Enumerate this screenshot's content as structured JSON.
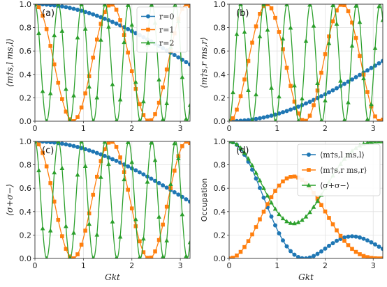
{
  "colors": {
    "blue": "#1f77b4",
    "orange": "#ff7f0e",
    "green": "#2ca02c",
    "grid": "#e2e2e2"
  },
  "chart_data": [
    {
      "type": "line",
      "panel_label": "(a)",
      "ylabel": "⟨m†s,l ms,l⟩",
      "xlabel": "",
      "xlim": [
        0,
        3.2
      ],
      "ylim": [
        0,
        1.0
      ],
      "xticks": [
        "0",
        "1",
        "2",
        "3"
      ],
      "yticks": [
        "0.0",
        "0.2",
        "0.4",
        "0.6",
        "0.8",
        "1.0"
      ],
      "grid": true,
      "legend": "top-right",
      "series": [
        {
          "name": "r=0",
          "color": "blue",
          "marker": "circle",
          "form": "cos2",
          "freq": 0.25
        },
        {
          "name": "r=1",
          "color": "orange",
          "marker": "square",
          "form": "cos2",
          "freq": 2.0
        },
        {
          "name": "r=2",
          "color": "green",
          "marker": "triangle",
          "form": "cos2",
          "freq": 6.5
        }
      ]
    },
    {
      "type": "line",
      "panel_label": "(b)",
      "ylabel": "⟨m†s,r ms,r⟩",
      "xlabel": "",
      "xlim": [
        0,
        3.2
      ],
      "ylim": [
        0,
        1.0
      ],
      "xticks": [
        "0",
        "1",
        "2",
        "3"
      ],
      "yticks": [
        "0.0",
        "0.2",
        "0.4",
        "0.6",
        "0.8",
        "1.0"
      ],
      "grid": true,
      "series": [
        {
          "color": "blue",
          "marker": "circle",
          "form": "sin2",
          "freq": 0.25
        },
        {
          "color": "orange",
          "marker": "square",
          "form": "sin2",
          "freq": 2.0
        },
        {
          "color": "green",
          "marker": "triangle",
          "form": "sin2",
          "freq": 6.5
        }
      ]
    },
    {
      "type": "line",
      "panel_label": "(c)",
      "ylabel": "⟨σ+σ−⟩",
      "xlabel": "Gkt",
      "xlim": [
        0,
        3.2
      ],
      "ylim": [
        0,
        1.0
      ],
      "xticks": [
        "0",
        "1",
        "2",
        "3"
      ],
      "yticks": [
        "0.0",
        "0.2",
        "0.4",
        "0.6",
        "0.8",
        "1.0"
      ],
      "grid": true,
      "series": [
        {
          "color": "blue",
          "marker": "circle",
          "form": "cos2",
          "freq": 0.25
        },
        {
          "color": "orange",
          "marker": "square",
          "form": "cos2",
          "freq": 2.0
        },
        {
          "color": "green",
          "marker": "triangle",
          "form": "cos2",
          "freq": 6.5
        }
      ]
    },
    {
      "type": "line",
      "panel_label": "(d)",
      "ylabel": "Occupation",
      "xlabel": "Gkt",
      "xlim": [
        0,
        3.2
      ],
      "ylim": [
        0,
        1.0
      ],
      "xticks": [
        "0",
        "1",
        "2",
        "3"
      ],
      "yticks": [
        "0.0",
        "0.2",
        "0.4",
        "0.6",
        "0.8",
        "1.0"
      ],
      "grid": true,
      "legend": "top-right",
      "series": [
        {
          "name": "⟨m†s,l ms,l⟩",
          "color": "blue",
          "marker": "circle",
          "form": "d-left"
        },
        {
          "name": "⟨m†s,r ms,r⟩",
          "color": "orange",
          "marker": "square",
          "form": "d-right"
        },
        {
          "name": "⟨σ+σ−⟩",
          "color": "green",
          "marker": "triangle",
          "form": "d-qubit"
        }
      ]
    }
  ]
}
